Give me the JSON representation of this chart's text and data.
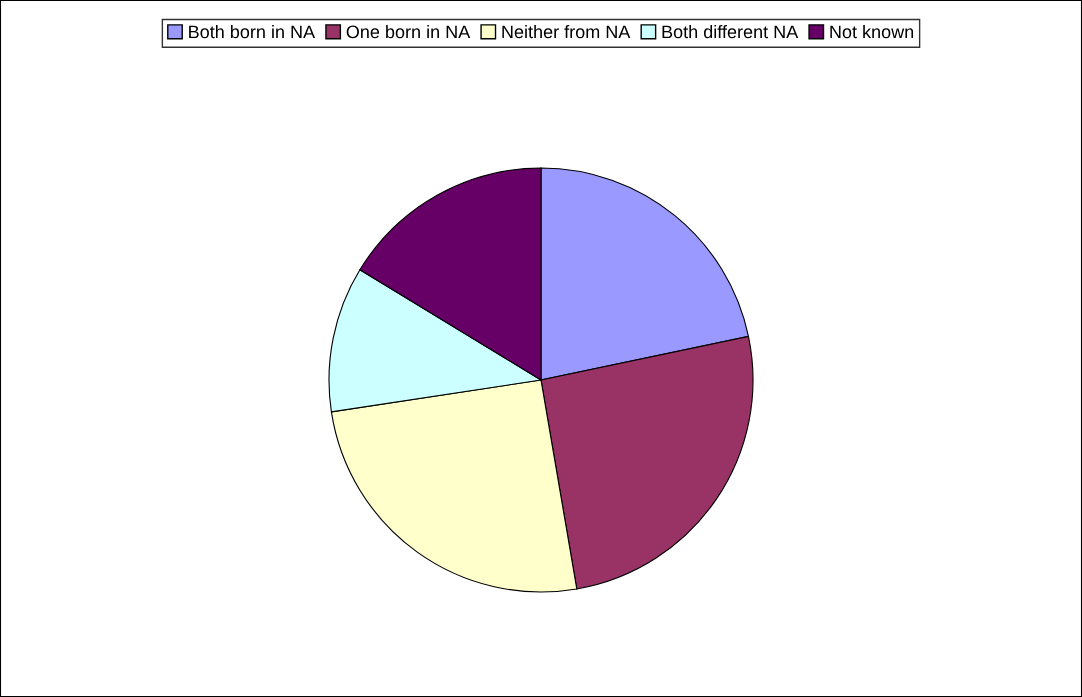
{
  "chart_data": {
    "type": "pie",
    "categories": [
      "Both born in NA",
      "One born in NA",
      "Neither from NA",
      "Both different NA",
      "Not known"
    ],
    "values": [
      21.7,
      25.6,
      25.3,
      11.1,
      16.3
    ],
    "colors": [
      "#9999ff",
      "#993366",
      "#ffffcc",
      "#ccffff",
      "#660066"
    ],
    "legend": "top"
  }
}
